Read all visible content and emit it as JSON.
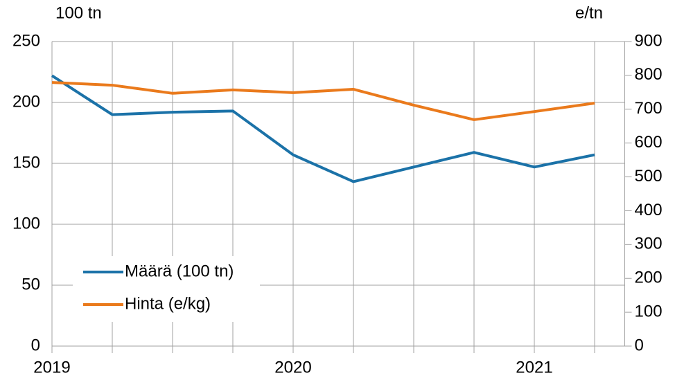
{
  "chart_data": {
    "type": "line",
    "y_label": "100 tn",
    "y2_label": "e/tn",
    "categories": [
      "2019",
      null,
      null,
      null,
      "2020",
      null,
      null,
      null,
      "2021",
      null
    ],
    "series": [
      {
        "name": "Määrä (100 tn)",
        "color": "#1b72a8",
        "values": [
          222,
          190,
          192,
          193,
          157,
          135,
          147,
          159,
          147,
          157
        ]
      },
      {
        "name": "Hinta (e/kg)",
        "color": "#ea7a1c",
        "axis": "y2",
        "values": [
          779,
          771,
          747,
          757,
          749,
          759,
          712,
          669,
          693,
          718
        ]
      }
    ],
    "ylim": [
      0,
      250
    ],
    "yticks": [
      0,
      50,
      100,
      150,
      200,
      250
    ],
    "y2lim": [
      0,
      900
    ],
    "y2ticks": [
      0,
      100,
      200,
      300,
      400,
      500,
      600,
      700,
      800,
      900
    ],
    "grid": true,
    "legend": "lower left"
  }
}
